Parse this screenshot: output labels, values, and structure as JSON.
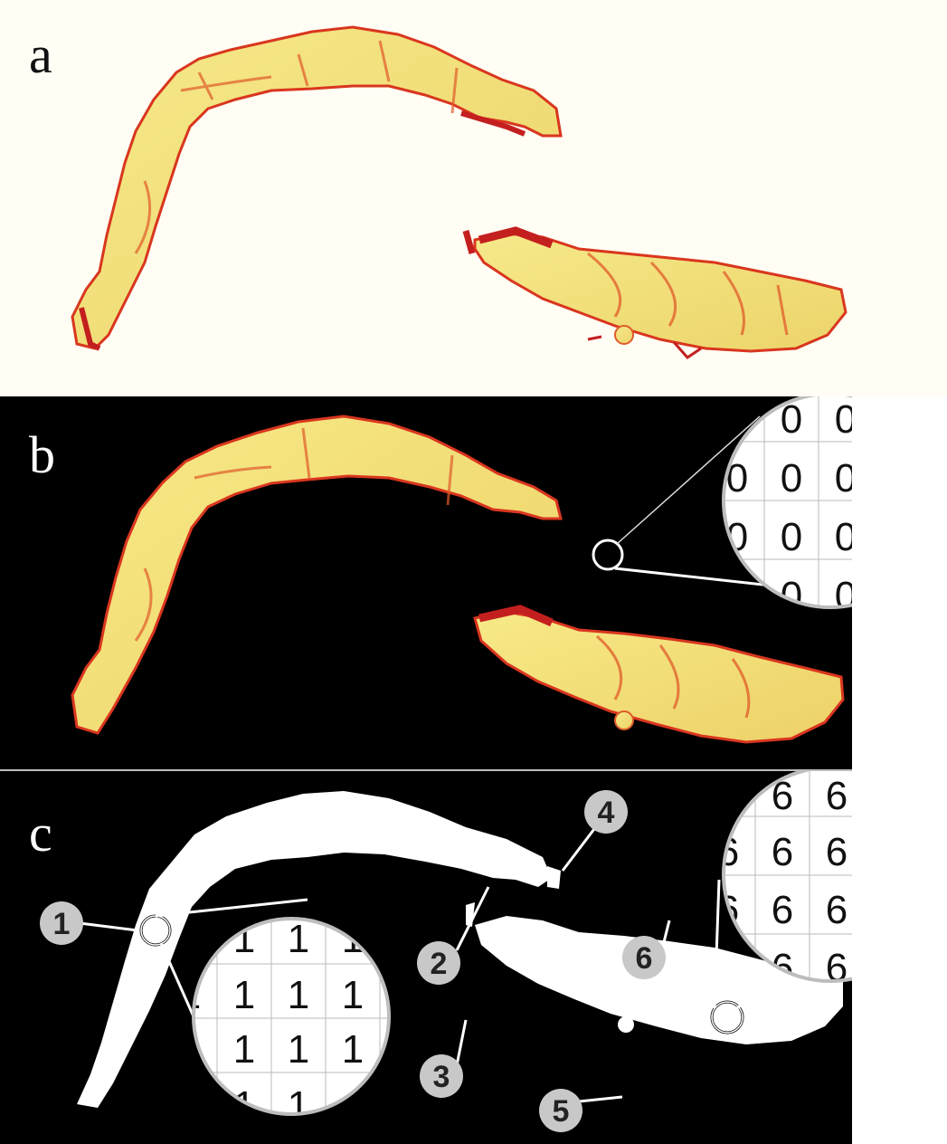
{
  "panels": {
    "a": {
      "label": "a"
    },
    "b": {
      "label": "b"
    },
    "c": {
      "label": "c"
    }
  },
  "zoom_b": {
    "digit": "0"
  },
  "zoom_c_left": {
    "digit": "1"
  },
  "zoom_c_right": {
    "digit": "6"
  },
  "region_badges": [
    "1",
    "2",
    "3",
    "4",
    "5",
    "6"
  ],
  "colors": {
    "tissue_yellow": "#f2e27a",
    "tissue_red": "#d9361e",
    "background_cream": "#fffdf4",
    "background_black": "#000000",
    "badge_gray": "#c8c8c8"
  }
}
